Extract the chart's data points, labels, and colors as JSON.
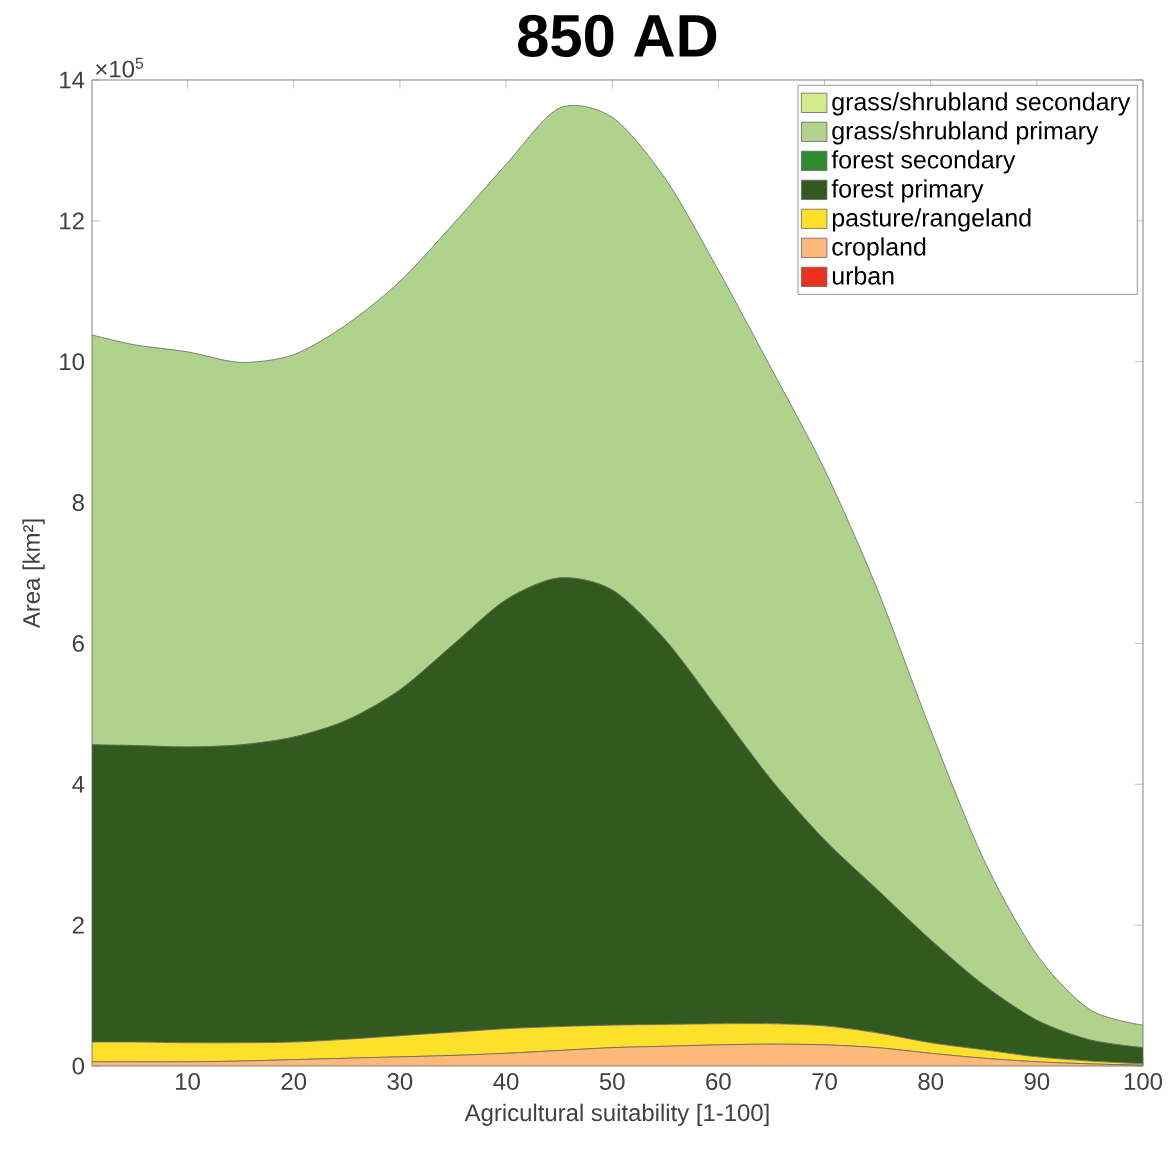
{
  "chart_data": {
    "type": "area",
    "title": "850 AD",
    "xlabel": "Agricultural suitability [1-100]",
    "ylabel": "Area [km²]",
    "annotations": [
      "×10$^{5}$"
    ],
    "stacked": true,
    "legend": "top right",
    "x": [
      1,
      5,
      10,
      15,
      20,
      25,
      30,
      35,
      40,
      45,
      50,
      55,
      60,
      65,
      70,
      75,
      80,
      85,
      90,
      95,
      100
    ],
    "xlim": [
      1,
      100
    ],
    "xticks": [
      10,
      20,
      30,
      40,
      50,
      60,
      70,
      80,
      90,
      100
    ],
    "ylim": [
      0,
      14
    ],
    "yticks": [
      0,
      2,
      4,
      6,
      8,
      10,
      12,
      14
    ],
    "series": [
      {
        "name": "urban",
        "color": "#e8321e",
        "values": [
          null,
          null,
          null,
          null,
          null,
          null,
          null,
          null,
          null,
          null,
          null,
          null,
          null,
          null,
          null,
          null,
          null,
          null,
          null,
          null,
          null
        ]
      },
      {
        "name": "cropland",
        "color": "#fdb97a",
        "values": [
          0.06,
          0.06,
          0.06,
          0.07,
          0.09,
          0.11,
          0.13,
          0.15,
          0.18,
          0.22,
          0.26,
          0.28,
          0.3,
          0.31,
          0.3,
          0.26,
          0.18,
          0.11,
          0.06,
          0.03,
          0.01
        ]
      },
      {
        "name": "pasture/rangeland",
        "color": "#fde02a",
        "values": [
          0.28,
          0.28,
          0.27,
          0.26,
          0.25,
          0.27,
          0.3,
          0.33,
          0.35,
          0.34,
          0.32,
          0.31,
          0.3,
          0.29,
          0.27,
          0.21,
          0.15,
          0.12,
          0.07,
          0.04,
          0.02
        ]
      },
      {
        "name": "forest primary",
        "color": "#325a1e",
        "values": [
          4.22,
          4.21,
          4.2,
          4.23,
          4.33,
          4.53,
          4.91,
          5.5,
          6.09,
          6.37,
          6.18,
          5.46,
          4.46,
          3.46,
          2.64,
          2.03,
          1.46,
          0.92,
          0.52,
          0.3,
          0.23
        ]
      },
      {
        "name": "forest secondary",
        "color": "#2f8a2f",
        "values": [
          null,
          null,
          null,
          null,
          null,
          null,
          null,
          null,
          null,
          null,
          null,
          null,
          null,
          null,
          null,
          null,
          null,
          null,
          null,
          null,
          null
        ]
      },
      {
        "name": "grass/shrubland primary",
        "color": "#b0d38b",
        "values": [
          5.82,
          5.69,
          5.61,
          5.43,
          5.43,
          5.62,
          5.8,
          5.97,
          6.18,
          6.67,
          6.71,
          6.55,
          6.24,
          5.84,
          5.26,
          4.26,
          2.98,
          1.78,
          0.93,
          0.43,
          0.32
        ]
      },
      {
        "name": "grass/shrubland secondary",
        "color": "#d4eb8c",
        "values": [
          null,
          null,
          null,
          null,
          null,
          null,
          null,
          null,
          null,
          null,
          null,
          null,
          null,
          null,
          null,
          null,
          null,
          null,
          null,
          null,
          null
        ]
      }
    ]
  }
}
